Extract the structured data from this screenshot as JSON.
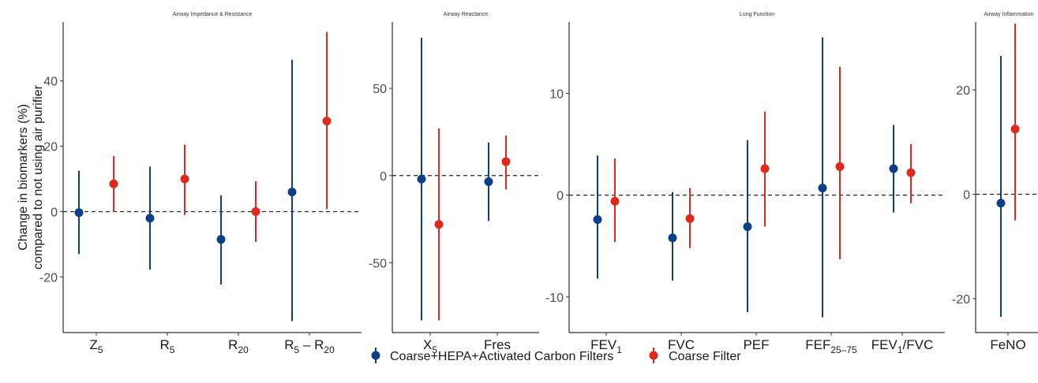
{
  "chart_data": {
    "type": "scatter",
    "subtype": "point-range",
    "ylabel": [
      "Change in biomarkers (%)",
      "compared to not using air purifier"
    ],
    "reference_line": 0,
    "grid": false,
    "colors": {
      "hepa": "#0d3f86",
      "coarse": "#e0281c"
    },
    "legend": {
      "placement": "bottom",
      "items": [
        {
          "key": "hepa",
          "label": "Coarse+HEPA+Activated Carbon Filters"
        },
        {
          "key": "coarse",
          "label": "Coarse Filter"
        }
      ]
    },
    "panels": [
      {
        "title": "Airway Impedance & Resistance",
        "ylim": [
          -37,
          58
        ],
        "yticks": [
          -20,
          0,
          20,
          40
        ],
        "categories": [
          {
            "label": "Z",
            "sub": "5"
          },
          {
            "label": "R",
            "sub": "5"
          },
          {
            "label": "R",
            "sub": "20"
          },
          {
            "label": "R",
            "sub": "5",
            "tail": " – R",
            "tailsub": "20"
          }
        ],
        "series": {
          "hepa": [
            {
              "est": -0.3,
              "lo": -13,
              "hi": 12.5
            },
            {
              "est": -2,
              "lo": -17.7,
              "hi": 13.8
            },
            {
              "est": -8.5,
              "lo": -22.3,
              "hi": 5
            },
            {
              "est": 6,
              "lo": -33.5,
              "hi": 46.5
            }
          ],
          "coarse": [
            {
              "est": 8.5,
              "lo": 0,
              "hi": 17
            },
            {
              "est": 10,
              "lo": -1,
              "hi": 20.5
            },
            {
              "est": 0,
              "lo": -9.3,
              "hi": 9.3
            },
            {
              "est": 27.7,
              "lo": 0.8,
              "hi": 55
            }
          ]
        }
      },
      {
        "title": "Airway Reactance",
        "ylim": [
          -90,
          88
        ],
        "yticks": [
          -50,
          0,
          50
        ],
        "categories": [
          {
            "label": "X",
            "sub": "5"
          },
          {
            "label": "Fres"
          }
        ],
        "series": {
          "hepa": [
            {
              "est": -2,
              "lo": -83,
              "hi": 79
            },
            {
              "est": -3.5,
              "lo": -26,
              "hi": 19
            }
          ],
          "coarse": [
            {
              "est": -28,
              "lo": -83,
              "hi": 27
            },
            {
              "est": 8,
              "lo": -8,
              "hi": 23
            }
          ]
        }
      },
      {
        "title": "Lung Function",
        "ylim": [
          -13.5,
          17
        ],
        "yticks": [
          -10,
          0,
          10
        ],
        "categories": [
          {
            "label": "FEV",
            "sub": "1"
          },
          {
            "label": "FVC"
          },
          {
            "label": "PEF"
          },
          {
            "label": "FEF",
            "sub": "25–75"
          },
          {
            "label": "FEV",
            "sub": "1",
            "tail": "/FVC"
          }
        ],
        "series": {
          "hepa": [
            {
              "est": -2.4,
              "lo": -8.2,
              "hi": 3.9
            },
            {
              "est": -4.2,
              "lo": -8.4,
              "hi": 0.3
            },
            {
              "est": -3.1,
              "lo": -11.5,
              "hi": 5.4
            },
            {
              "est": 0.7,
              "lo": -12,
              "hi": 15.5
            },
            {
              "est": 2.6,
              "lo": -1.7,
              "hi": 6.9
            }
          ],
          "coarse": [
            {
              "est": -0.6,
              "lo": -4.6,
              "hi": 3.6
            },
            {
              "est": -2.3,
              "lo": -5.2,
              "hi": 0.7
            },
            {
              "est": 2.6,
              "lo": -3.1,
              "hi": 8.2
            },
            {
              "est": 2.8,
              "lo": -6.3,
              "hi": 12.6
            },
            {
              "est": 2.2,
              "lo": -0.8,
              "hi": 5
            }
          ]
        }
      },
      {
        "title": "Airway Inflammation",
        "ylim": [
          -26.5,
          33
        ],
        "yticks": [
          -20,
          0,
          20
        ],
        "categories": [
          {
            "label": "FeNO"
          }
        ],
        "series": {
          "hepa": [
            {
              "est": -1.7,
              "lo": -23.5,
              "hi": 26.5
            }
          ],
          "coarse": [
            {
              "est": 12.5,
              "lo": -5,
              "hi": 32.7
            }
          ]
        }
      }
    ]
  }
}
